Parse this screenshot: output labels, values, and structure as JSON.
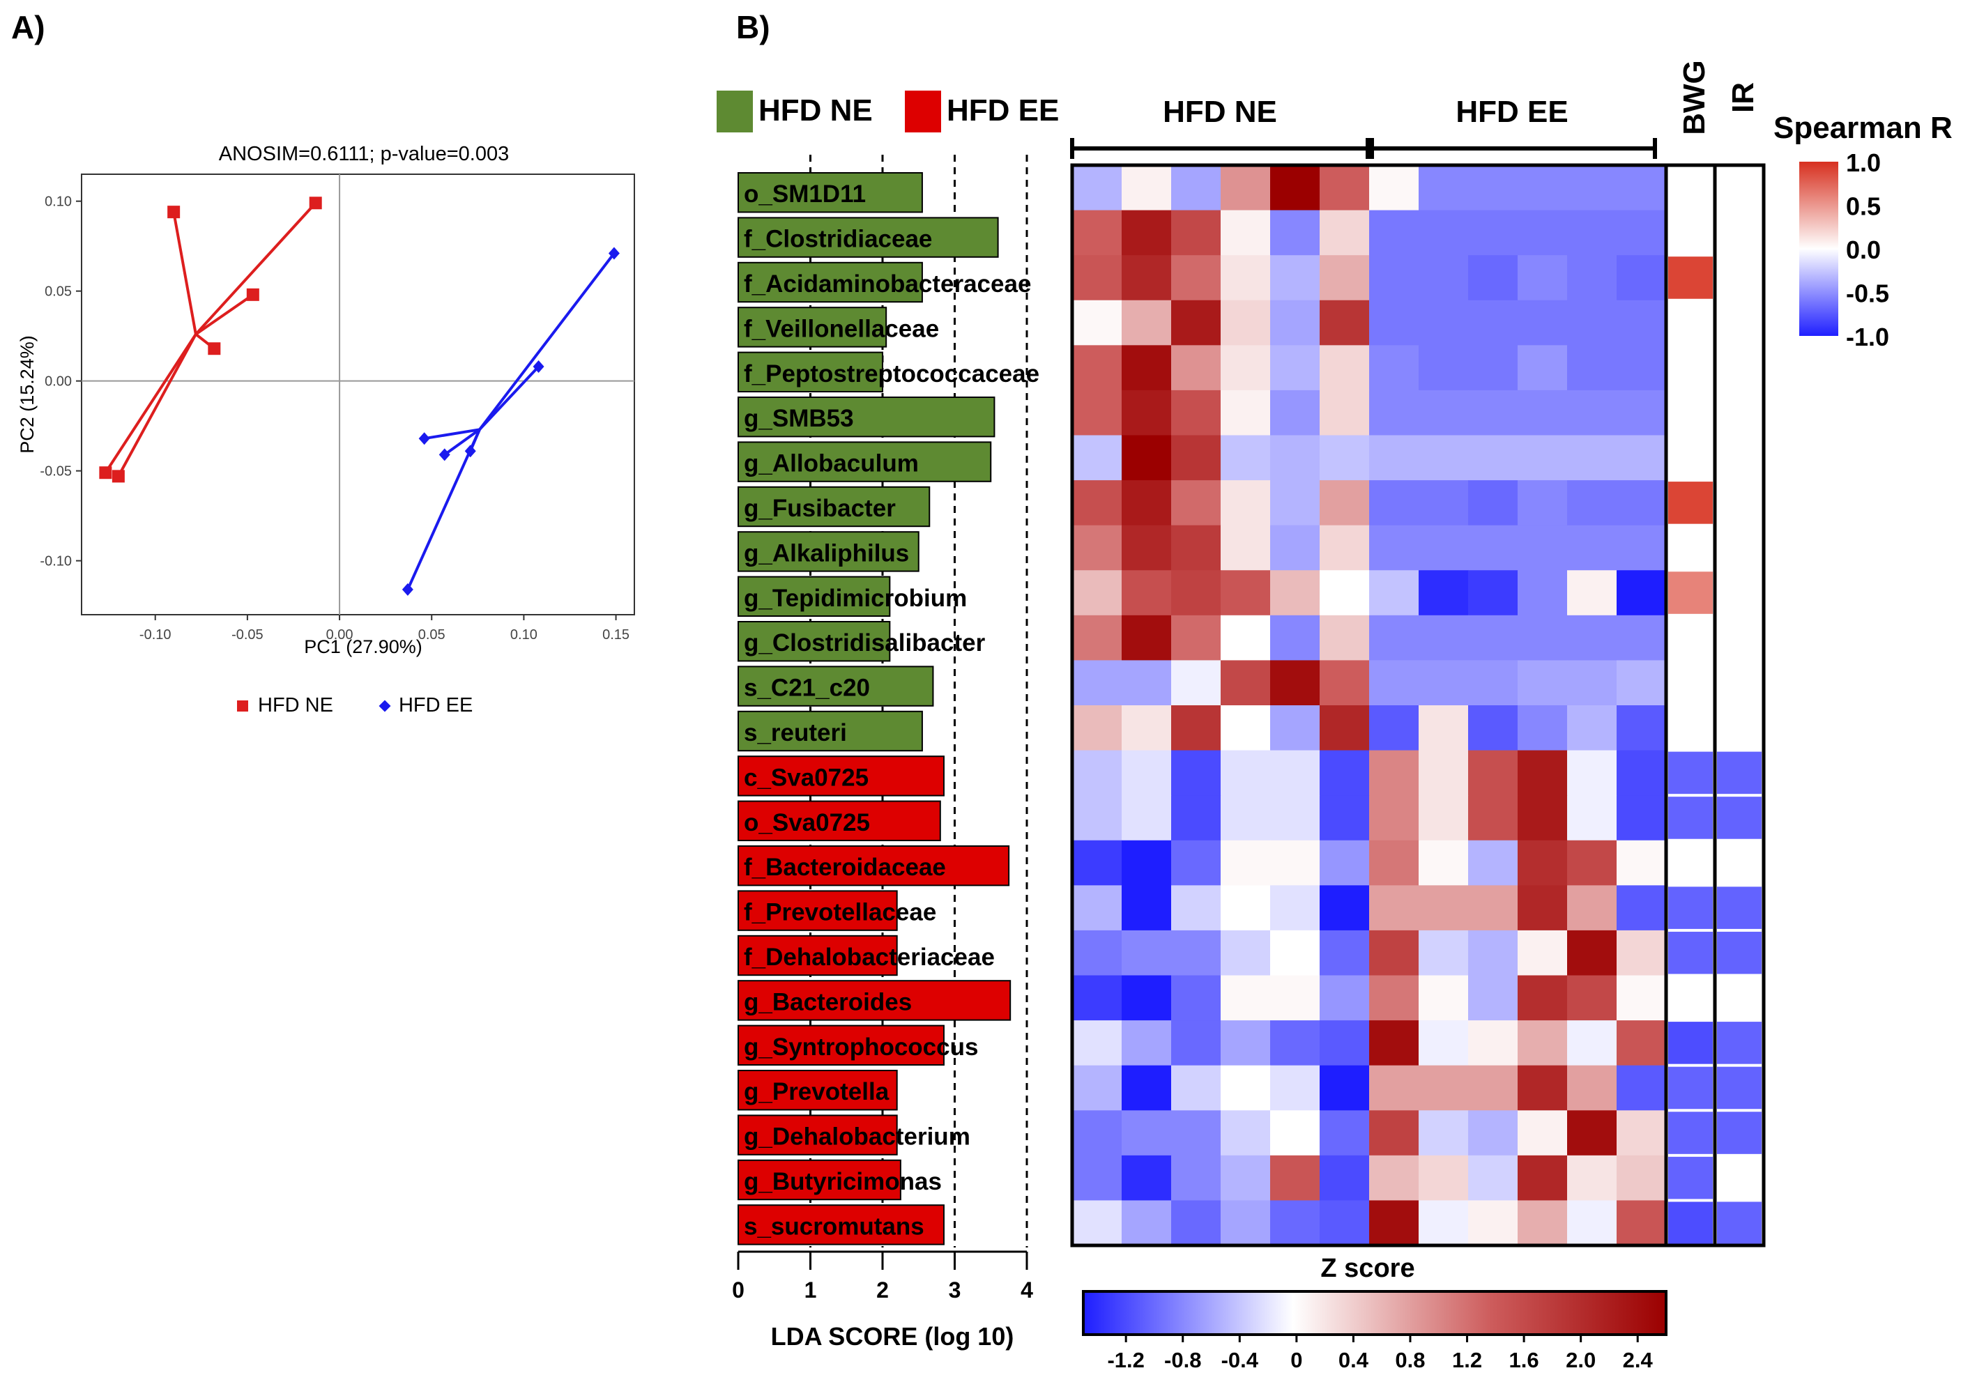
{
  "panels": {
    "a_label": "A)",
    "b_label": "B)"
  },
  "pca": {
    "title": "ANOSIM=0.6111; p-value=0.003",
    "xlabel": "PC1 (27.90%)",
    "ylabel": "PC2 (15.24%)",
    "x_ticks": [
      "-0.10",
      "-0.05",
      "0.00",
      "0.05",
      "0.10",
      "0.15"
    ],
    "y_ticks": [
      "0.10",
      "0.05",
      "0.00",
      "-0.05",
      "-0.10"
    ],
    "legend": {
      "ne": "HFD NE",
      "ee": "HFD EE"
    }
  },
  "lda": {
    "legend_ne": "HFD NE",
    "legend_ee": "HFD EE",
    "xlabel": "LDA SCORE (log 10)",
    "ticks": [
      "0",
      "1",
      "2",
      "3",
      "4"
    ]
  },
  "heatmap": {
    "group_ne": "HFD NE",
    "group_ee": "HFD EE",
    "zlabel": "Z score",
    "z_ticks": [
      "-1.2",
      "-0.8",
      "-0.4",
      "0",
      "0.4",
      "0.8",
      "1.2",
      "1.6",
      "2.0",
      "2.4"
    ],
    "corr_cols": [
      "BWG",
      "IR"
    ],
    "spearman_title": "Spearman R",
    "spearman_ticks": [
      "1.0",
      "0.5",
      "0.0",
      "-0.5",
      "-1.0"
    ]
  },
  "colors": {
    "ne": "#5e8a32",
    "ee": "#dd0000",
    "pca_ne": "#dd1e1e",
    "pca_ee": "#1a1aee"
  },
  "chart_data": [
    {
      "type": "scatter",
      "title": "ANOSIM=0.6111; p-value=0.003",
      "xlabel": "PC1 (27.90%)",
      "ylabel": "PC2 (15.24%)",
      "xlim": [
        -0.14,
        0.16
      ],
      "ylim": [
        -0.13,
        0.115
      ],
      "series": [
        {
          "name": "HFD NE",
          "marker": "square",
          "centroid": [
            -0.078,
            0.026
          ],
          "points": [
            [
              -0.09,
              0.094
            ],
            [
              -0.013,
              0.099
            ],
            [
              -0.047,
              0.048
            ],
            [
              -0.068,
              0.018
            ],
            [
              -0.127,
              -0.051
            ],
            [
              -0.12,
              -0.053
            ]
          ]
        },
        {
          "name": "HFD EE",
          "marker": "diamond",
          "centroid": [
            0.076,
            -0.027
          ],
          "points": [
            [
              0.149,
              0.071
            ],
            [
              0.108,
              0.008
            ],
            [
              0.046,
              -0.032
            ],
            [
              0.057,
              -0.041
            ],
            [
              0.071,
              -0.039
            ],
            [
              0.037,
              -0.116
            ]
          ]
        }
      ]
    },
    {
      "type": "bar",
      "title": "",
      "xlabel": "LDA SCORE (log 10)",
      "xlim": [
        0,
        4
      ],
      "categories": [
        "o_SM1D11",
        "f_Clostridiaceae",
        "f_Acidaminobacteraceae",
        "f_Veillonellaceae",
        "f_Peptostreptococcaceae",
        "g_SMB53",
        "g_Allobaculum",
        "g_Fusibacter",
        "g_Alkaliphilus",
        "g_Tepidimicrobium",
        "g_Clostridisalibacter",
        "s_C21_c20",
        "s_reuteri",
        "c_Sva0725",
        "o_Sva0725",
        "f_Bacteroidaceae",
        "f_Prevotellaceae",
        "f_Dehalobacteriaceae",
        "g_Bacteroides",
        "g_Syntrophococcus",
        "g_Prevotella",
        "g_Dehalobacterium",
        "g_Butyricimonas",
        "s_sucromutans"
      ],
      "groups": [
        "HFD NE",
        "HFD NE",
        "HFD NE",
        "HFD NE",
        "HFD NE",
        "HFD NE",
        "HFD NE",
        "HFD NE",
        "HFD NE",
        "HFD NE",
        "HFD NE",
        "HFD NE",
        "HFD NE",
        "HFD EE",
        "HFD EE",
        "HFD EE",
        "HFD EE",
        "HFD EE",
        "HFD EE",
        "HFD EE",
        "HFD EE",
        "HFD EE",
        "HFD EE",
        "HFD EE"
      ],
      "values": [
        2.55,
        3.6,
        2.55,
        2.05,
        2.0,
        3.55,
        3.5,
        2.65,
        2.5,
        2.1,
        2.1,
        2.7,
        2.55,
        2.85,
        2.8,
        3.75,
        2.2,
        2.2,
        3.77,
        2.85,
        2.2,
        2.2,
        2.25,
        2.85
      ]
    },
    {
      "type": "heatmap",
      "title": "",
      "xlabel": "Z score",
      "column_groups": [
        "HFD NE",
        "HFD NE",
        "HFD NE",
        "HFD NE",
        "HFD NE",
        "HFD NE",
        "HFD EE",
        "HFD EE",
        "HFD EE",
        "HFD EE",
        "HFD EE",
        "HFD EE"
      ],
      "zlim": [
        -1.5,
        2.6
      ],
      "rows": [
        [
          -0.5,
          0.1,
          -0.6,
          0.8,
          2.6,
          1.2,
          0.05,
          -0.8,
          -0.8,
          -0.8,
          -0.8,
          -0.8
        ],
        [
          1.2,
          2.2,
          1.5,
          0.1,
          -0.8,
          0.3,
          -0.9,
          -0.9,
          -0.9,
          -0.9,
          -0.9,
          -0.9
        ],
        [
          1.3,
          2.0,
          1.1,
          0.2,
          -0.5,
          0.6,
          -0.9,
          -0.9,
          -1.0,
          -0.8,
          -0.9,
          -1.0
        ],
        [
          0.05,
          0.6,
          2.2,
          0.3,
          -0.6,
          1.8,
          -0.9,
          -0.9,
          -0.9,
          -0.9,
          -0.9,
          -0.9
        ],
        [
          1.2,
          2.4,
          0.8,
          0.2,
          -0.5,
          0.3,
          -0.8,
          -0.9,
          -0.9,
          -0.7,
          -0.9,
          -0.9
        ],
        [
          1.2,
          2.2,
          1.4,
          0.1,
          -0.7,
          0.3,
          -0.8,
          -0.8,
          -0.8,
          -0.8,
          -0.8,
          -0.8
        ],
        [
          -0.4,
          2.6,
          1.8,
          -0.4,
          -0.5,
          -0.4,
          -0.5,
          -0.5,
          -0.5,
          -0.5,
          -0.5,
          -0.5
        ],
        [
          1.4,
          2.2,
          1.1,
          0.2,
          -0.5,
          0.7,
          -0.9,
          -0.9,
          -1.0,
          -0.8,
          -0.9,
          -0.9
        ],
        [
          1.0,
          2.0,
          1.7,
          0.2,
          -0.6,
          0.3,
          -0.8,
          -0.8,
          -0.8,
          -0.8,
          -0.8,
          -0.8
        ],
        [
          0.5,
          1.4,
          1.6,
          1.3,
          0.5,
          0.0,
          -0.4,
          -1.4,
          -1.3,
          -0.8,
          0.1,
          -1.5
        ],
        [
          1.0,
          2.4,
          1.1,
          0.0,
          -0.8,
          0.4,
          -0.8,
          -0.8,
          -0.8,
          -0.8,
          -0.8,
          -0.8
        ],
        [
          -0.6,
          -0.6,
          -0.1,
          1.5,
          2.4,
          1.2,
          -0.7,
          -0.7,
          -0.7,
          -0.6,
          -0.6,
          -0.5
        ],
        [
          0.5,
          0.2,
          1.8,
          0.0,
          -0.6,
          2.0,
          -1.1,
          0.2,
          -1.1,
          -0.8,
          -0.5,
          -1.1
        ],
        [
          -0.4,
          -0.2,
          -1.2,
          -0.2,
          -0.2,
          -1.2,
          0.9,
          0.2,
          1.4,
          2.2,
          -0.1,
          -1.2
        ],
        [
          -0.4,
          -0.2,
          -1.2,
          -0.2,
          -0.2,
          -1.2,
          0.9,
          0.2,
          1.4,
          2.2,
          -0.1,
          -1.2
        ],
        [
          -1.3,
          -1.6,
          -1.0,
          0.05,
          0.05,
          -0.7,
          1.0,
          0.05,
          -0.5,
          1.9,
          1.5,
          0.05
        ],
        [
          -0.5,
          -1.7,
          -0.3,
          0.0,
          -0.2,
          -1.5,
          0.7,
          0.7,
          0.7,
          2.0,
          0.7,
          -1.1
        ],
        [
          -0.9,
          -0.8,
          -0.8,
          -0.3,
          0.0,
          -1.0,
          1.6,
          -0.3,
          -0.5,
          0.1,
          2.4,
          0.3
        ],
        [
          -1.3,
          -1.6,
          -1.0,
          0.05,
          0.05,
          -0.7,
          1.0,
          0.05,
          -0.5,
          1.9,
          1.5,
          0.05
        ],
        [
          -0.2,
          -0.6,
          -1.0,
          -0.6,
          -1.0,
          -1.1,
          2.4,
          -0.1,
          0.1,
          0.6,
          -0.1,
          1.3
        ],
        [
          -0.5,
          -1.7,
          -0.3,
          0.0,
          -0.2,
          -1.5,
          0.7,
          0.7,
          0.7,
          2.0,
          0.7,
          -1.1
        ],
        [
          -0.9,
          -0.8,
          -0.8,
          -0.3,
          0.0,
          -1.0,
          1.6,
          -0.3,
          -0.5,
          0.1,
          2.4,
          0.3
        ],
        [
          -0.9,
          -1.4,
          -0.8,
          -0.5,
          1.3,
          -1.2,
          0.5,
          0.3,
          -0.3,
          2.0,
          0.2,
          0.4
        ],
        [
          -0.2,
          -0.6,
          -1.0,
          -0.6,
          -1.0,
          -1.1,
          2.4,
          -0.1,
          0.1,
          0.6,
          -0.1,
          1.3
        ]
      ]
    },
    {
      "type": "heatmap",
      "title": "Spearman R",
      "columns": [
        "BWG",
        "IR"
      ],
      "zlim": [
        -1.0,
        1.0
      ],
      "rows": [
        [
          0,
          0
        ],
        [
          0,
          0
        ],
        [
          0.9,
          0
        ],
        [
          0,
          0
        ],
        [
          0,
          0
        ],
        [
          0,
          0
        ],
        [
          0,
          0
        ],
        [
          0.9,
          0
        ],
        [
          0,
          0
        ],
        [
          0.6,
          0
        ],
        [
          0,
          0
        ],
        [
          0,
          0
        ],
        [
          0,
          0
        ],
        [
          -0.7,
          -0.7
        ],
        [
          -0.7,
          -0.7
        ],
        [
          0,
          0
        ],
        [
          -0.7,
          -0.7
        ],
        [
          -0.7,
          -0.7
        ],
        [
          0,
          0
        ],
        [
          -0.8,
          -0.7
        ],
        [
          -0.7,
          -0.7
        ],
        [
          -0.7,
          -0.7
        ],
        [
          -0.7,
          0
        ],
        [
          -0.8,
          -0.7
        ]
      ]
    }
  ]
}
